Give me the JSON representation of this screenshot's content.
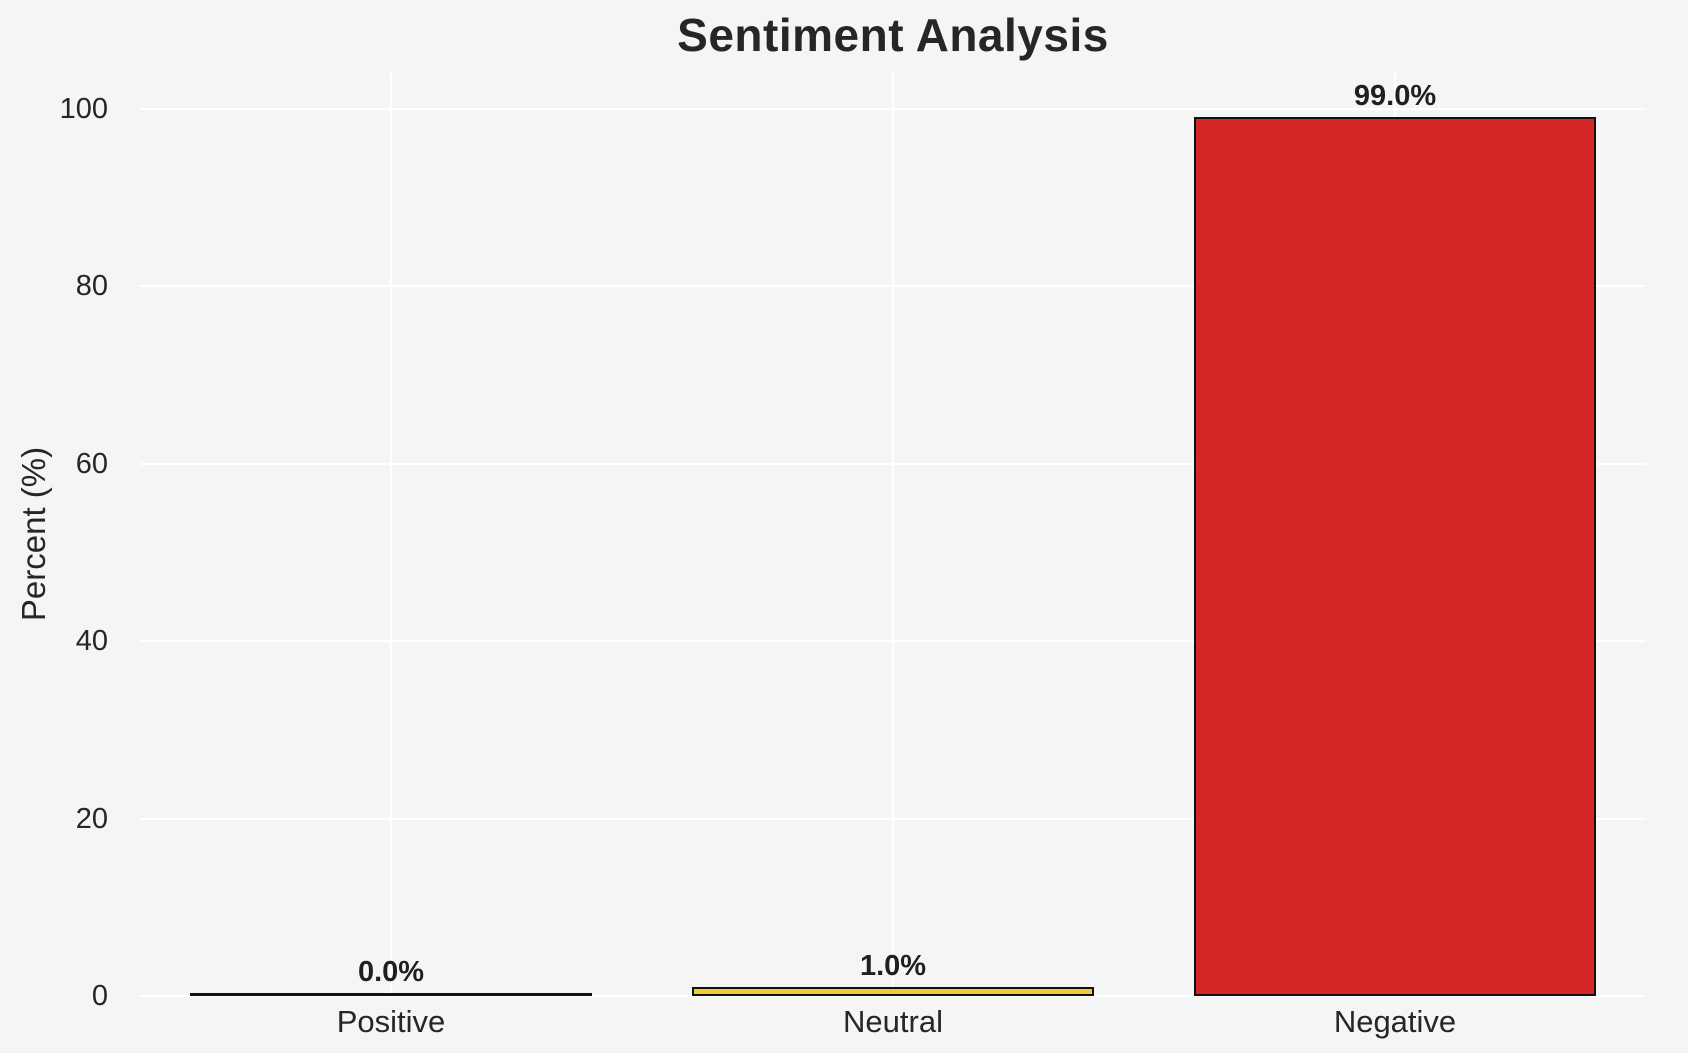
{
  "title": "Sentiment Analysis",
  "chart_data": {
    "type": "bar",
    "title": "Sentiment Analysis",
    "categories": [
      "Positive",
      "Neutral",
      "Negative"
    ],
    "values": [
      0.0,
      1.0,
      99.0
    ],
    "value_labels": [
      "0.0%",
      "1.0%",
      "99.0%"
    ],
    "bar_fill_colors": [
      null,
      "#EFCB38",
      "#D62728"
    ],
    "bar_edge_color": "#111111",
    "xlabel": "",
    "ylabel": "Percent (%)",
    "yticks": [
      0,
      20,
      40,
      60,
      80,
      100
    ],
    "ylim": [
      0,
      104
    ],
    "grid": true,
    "legend": "none",
    "background_color": "#f5f5f6",
    "gridline_color": "#ffffff",
    "text_color": "#262626"
  }
}
